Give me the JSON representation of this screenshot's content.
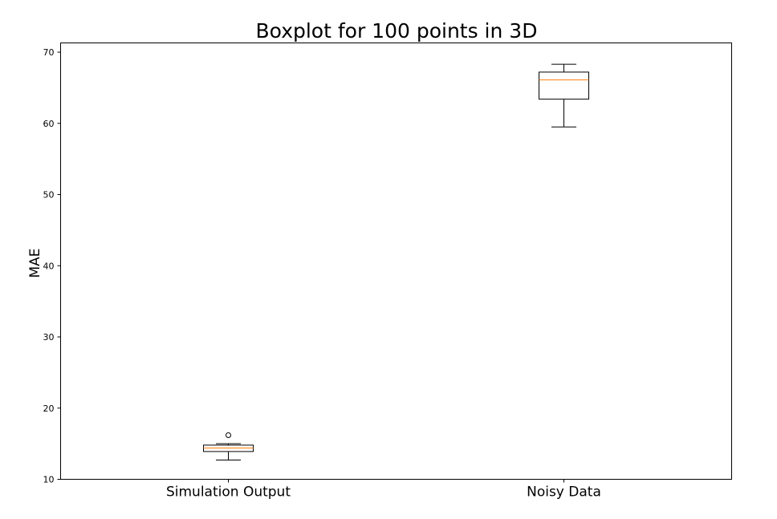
{
  "chart_data": {
    "type": "box",
    "title": "Boxplot for 100 points in 3D",
    "xlabel": "",
    "ylabel": "MAE",
    "categories": [
      "Simulation Output",
      "Noisy Data"
    ],
    "ylim": [
      10,
      71.3
    ],
    "yticks": [
      10,
      20,
      30,
      40,
      50,
      60,
      70
    ],
    "grid": false,
    "boxes": [
      {
        "category": "Simulation Output",
        "whisker_low": 12.7,
        "q1": 13.9,
        "median": 14.4,
        "q3": 14.8,
        "whisker_high": 15.0,
        "outliers": [
          16.2
        ]
      },
      {
        "category": "Noisy Data",
        "whisker_low": 59.5,
        "q1": 63.4,
        "median": 66.1,
        "q3": 67.2,
        "whisker_high": 68.3,
        "outliers": []
      }
    ],
    "colors": {
      "box": "#000000",
      "median": "#ff7f0e",
      "outlier": "#000000"
    }
  }
}
